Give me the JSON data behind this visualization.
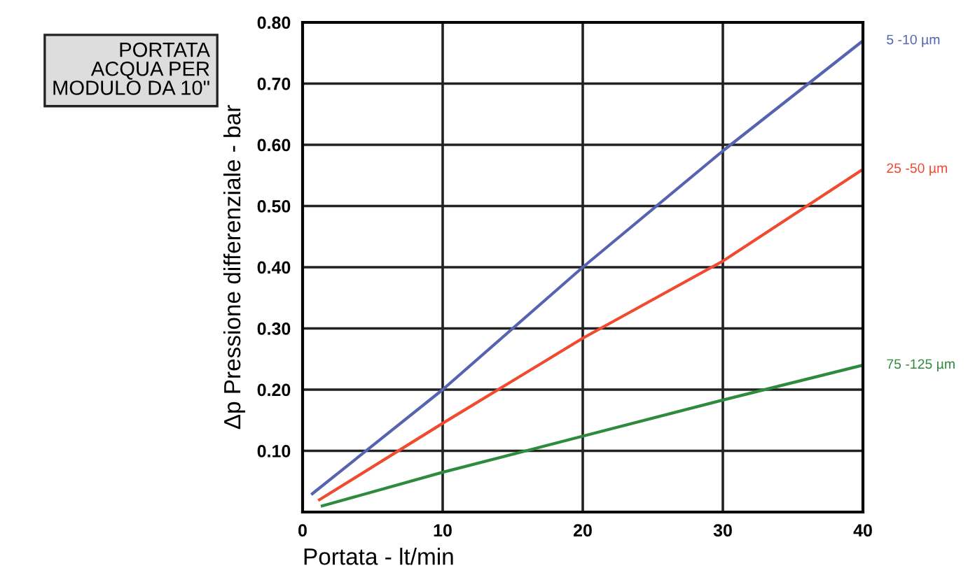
{
  "chart_data": {
    "type": "line",
    "title": "PORTATA\nACQUA PER\nMODULO DA 10\"",
    "xlabel": "Portata - lt/min",
    "ylabel": "Δp Pressione differenziale - bar",
    "xlim": [
      0,
      40
    ],
    "ylim": [
      0,
      0.8
    ],
    "xticks": [
      0,
      10,
      20,
      30,
      40
    ],
    "yticks": [
      {
        "value": 0.1,
        "label": "0.10"
      },
      {
        "value": 0.2,
        "label": "0.20"
      },
      {
        "value": 0.3,
        "label": "0.30"
      },
      {
        "value": 0.4,
        "label": "0.40"
      },
      {
        "value": 0.5,
        "label": "0.50"
      },
      {
        "value": 0.6,
        "label": "0.60"
      },
      {
        "value": 0.7,
        "label": "0.70"
      },
      {
        "value": 0.8,
        "label": "0.80"
      }
    ],
    "grid": true,
    "legend": false,
    "marker": "none",
    "line_style": "solid",
    "series": [
      {
        "name": "5 -10 µm",
        "color": "#5563b0",
        "x": [
          0.7,
          10,
          20,
          30,
          40
        ],
        "values": [
          0.03,
          0.2,
          0.4,
          0.59,
          0.77
        ]
      },
      {
        "name": "25 -50 µm",
        "color": "#f04a30",
        "x": [
          1.2,
          10,
          20,
          30,
          40
        ],
        "values": [
          0.02,
          0.145,
          0.284,
          0.41,
          0.56
        ]
      },
      {
        "name": "75 -125 µm",
        "color": "#2e8b3e",
        "x": [
          1.4,
          10,
          20,
          30,
          40
        ],
        "values": [
          0.01,
          0.065,
          0.124,
          0.183,
          0.24
        ]
      }
    ]
  }
}
